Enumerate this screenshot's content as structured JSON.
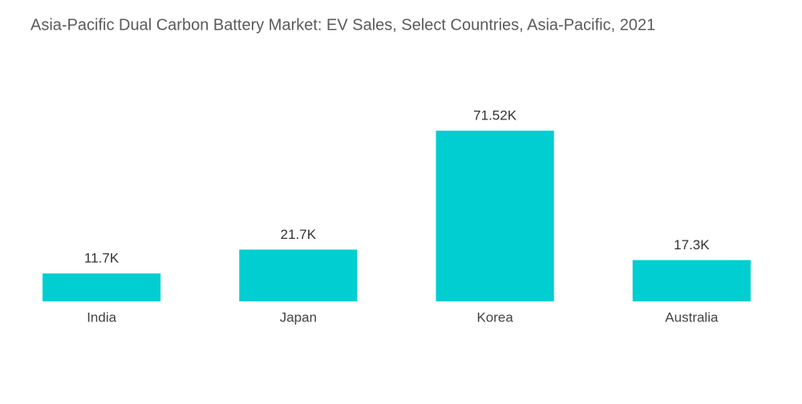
{
  "chart_data": {
    "type": "bar",
    "title": "Asia-Pacific Dual Carbon Battery Market: EV Sales, Select Countries, Asia-Pacific, 2021",
    "categories": [
      "India",
      "Japan",
      "Korea",
      "Australia"
    ],
    "values": [
      11.7,
      21.7,
      71.52,
      17.3
    ],
    "value_labels": [
      "11.7K",
      "21.7K",
      "71.52K",
      "17.3K"
    ],
    "color": "#00ced1"
  }
}
